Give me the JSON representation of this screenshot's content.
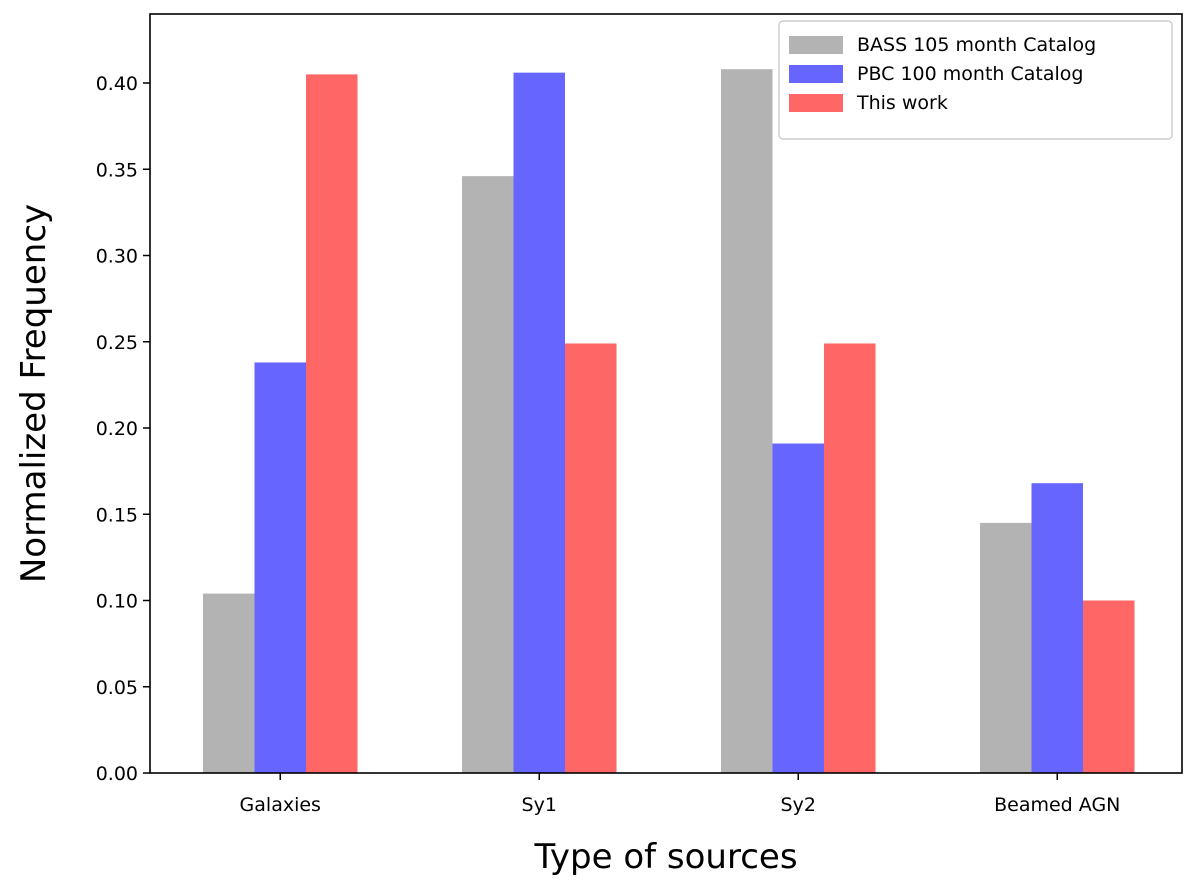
{
  "chart_data": {
    "type": "bar",
    "title": "",
    "xlabel": "Type of sources",
    "ylabel": "Normalized Frequency",
    "categories": [
      "Galaxies",
      "Sy1",
      "Sy2",
      "Beamed AGN"
    ],
    "series": [
      {
        "name": "BASS 105 month Catalog",
        "color": "#b3b3b3",
        "values": [
          0.104,
          0.346,
          0.408,
          0.145
        ]
      },
      {
        "name": "PBC 100 month Catalog",
        "color": "#6666ff",
        "values": [
          0.238,
          0.406,
          0.191,
          0.168
        ]
      },
      {
        "name": "This work",
        "color": "#ff6666",
        "values": [
          0.405,
          0.249,
          0.249,
          0.1
        ]
      }
    ],
    "ylim": [
      0,
      0.44
    ],
    "yticks": [
      "0.00",
      "0.05",
      "0.10",
      "0.15",
      "0.20",
      "0.25",
      "0.30",
      "0.35",
      "0.40"
    ],
    "grid": false,
    "legend_position": "top-right"
  }
}
